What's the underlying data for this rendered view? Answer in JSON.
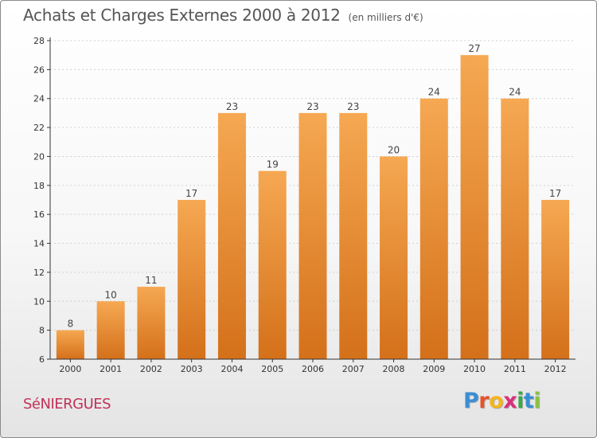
{
  "title": "Achats et Charges Externes 2000 à 2012",
  "unit": "(en milliers d'€)",
  "commune": "SéNIERGUES",
  "logo": {
    "letters": [
      "P",
      "r",
      "o",
      "x",
      "i",
      "t",
      "i"
    ],
    "colors": [
      "#3b8ed4",
      "#e8532b",
      "#f5b520",
      "#d8307a",
      "#3aa847",
      "#3b8ed4",
      "#8ac43f"
    ]
  },
  "colors": {
    "bar_light": "#f6a852",
    "bar_dark": "#d4701a",
    "axis": "#333333",
    "grid": "#d0d0d0"
  },
  "chart_data": {
    "type": "bar",
    "title": "Achats et Charges Externes 2000 à 2012",
    "subtitle": "(en milliers d'€)",
    "categories": [
      "2000",
      "2001",
      "2002",
      "2003",
      "2004",
      "2005",
      "2006",
      "2007",
      "2008",
      "2009",
      "2010",
      "2011",
      "2012"
    ],
    "values": [
      8,
      10,
      11,
      17,
      23,
      19,
      23,
      23,
      20,
      24,
      27,
      24,
      17
    ],
    "ylim": [
      6,
      28
    ],
    "yticks": [
      6,
      8,
      10,
      12,
      14,
      16,
      18,
      20,
      22,
      24,
      26,
      28
    ],
    "grid": "horizontal, dotted",
    "data_labels": true
  }
}
